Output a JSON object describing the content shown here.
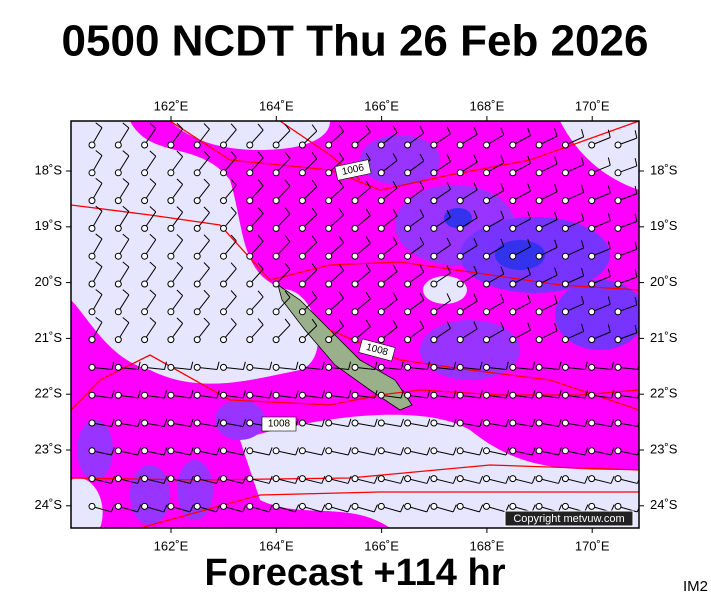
{
  "header": {
    "title": "0500 NCDT Thu 26 Feb 2026"
  },
  "map": {
    "lon_labels": [
      "162˚E",
      "164˚E",
      "166˚E",
      "168˚E",
      "170˚E"
    ],
    "lat_labels": [
      "18˚S",
      "19˚S",
      "20˚S",
      "21˚S",
      "22˚S",
      "23˚S",
      "24˚S"
    ],
    "isobar_labels": [
      "1006",
      "1008",
      "1008"
    ],
    "copyright": "Copyright metvuw.com"
  },
  "footer": {
    "forecast": "Forecast +114 hr",
    "code": "IM2"
  }
}
